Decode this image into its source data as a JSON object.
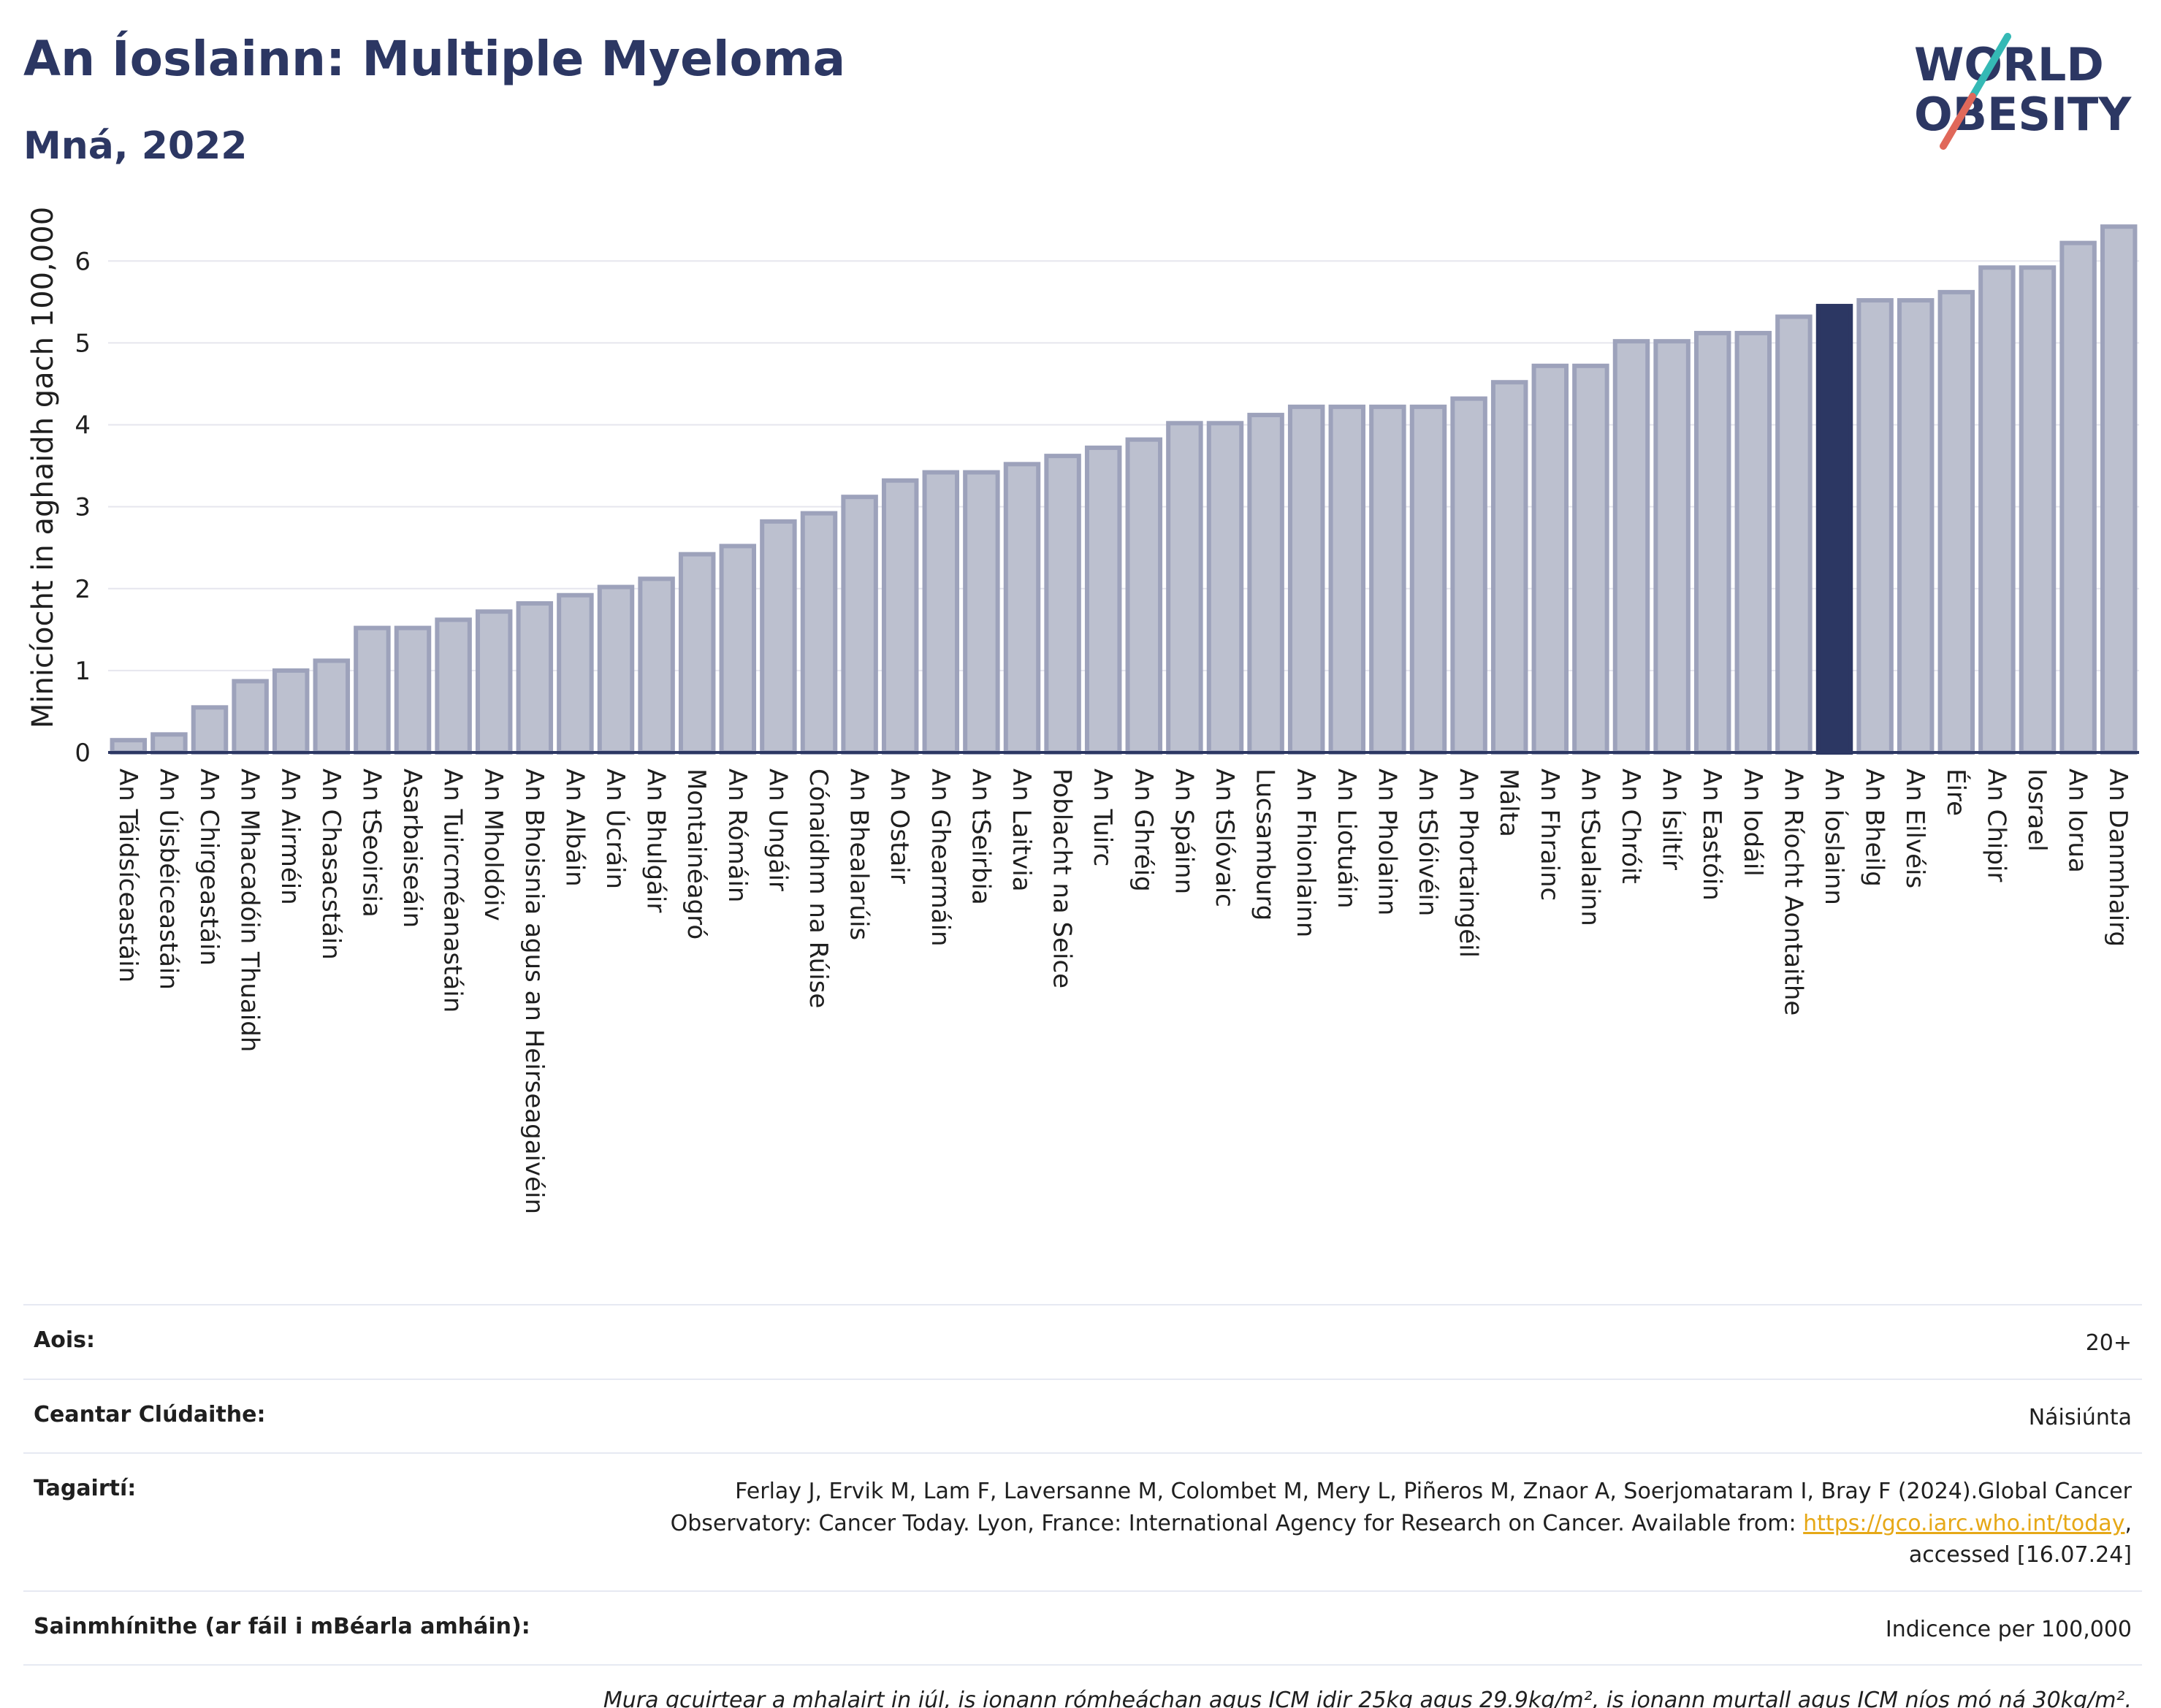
{
  "header": {
    "title": "An Íoslainn: Multiple Myeloma",
    "subtitle": "Mná, 2022"
  },
  "logo": {
    "line1": "WORLD",
    "line2": "OBESITY",
    "accent_colors": [
      "#35b9b5",
      "#e0685a"
    ]
  },
  "colors": {
    "bar": "#bcc0cf",
    "bar_border": "#9da2bb",
    "highlight": "#2c3763",
    "axis": "#2c3763",
    "grid": "#e6e6ee"
  },
  "chart_data": {
    "type": "bar",
    "ylabel": "Minicíocht in aghaidh gach 100,000",
    "ylim": [
      0,
      6.6
    ],
    "yticks": [
      0,
      1,
      2,
      3,
      4,
      5,
      6
    ],
    "highlight": "An Íoslainn",
    "categories": [
      "An Táidsíceastáin",
      "An Úisbéiceastáin",
      "An Chirgeastáin",
      "An Mhacadóin Thuaidh",
      "An Airméin",
      "An Chasacstáin",
      "An tSeoirsia",
      "Asarbaiseáin",
      "An Tuircméanastáin",
      "An Mholdóiv",
      "An Bhoisnia agus an Heirseagaivéin",
      "An Albáin",
      "An Úcráin",
      "An Bhulgáir",
      "Montainéagró",
      "An Rómáin",
      "An Ungáir",
      "Cónaidhm na Rúise",
      "An Bhealarúis",
      "An Ostair",
      "An Ghearmáin",
      "An tSeirbia",
      "An Laitvia",
      "Poblacht na Seice",
      "An Tuirc",
      "An Ghréig",
      "An Spáinn",
      "An tSlóvaic",
      "Lucsamburg",
      "An Fhionlainn",
      "An Liotuáin",
      "An Pholainn",
      "An tSlóivéin",
      "An Phortaingéil",
      "Málta",
      "An Fhrainc",
      "An tSualainn",
      "An Chróit",
      "An Ísiltír",
      "An Eastóin",
      "An Iodáil",
      "An Ríocht Aontaithe",
      "An Íoslainn",
      "An Bheilg",
      "An Eilvéis",
      "Éire",
      "An Chipir",
      "Iosrael",
      "An Iorua",
      "An Danmhairg"
    ],
    "values": [
      0.15,
      0.22,
      0.55,
      0.87,
      1.0,
      1.12,
      1.52,
      1.52,
      1.62,
      1.72,
      1.82,
      1.92,
      2.02,
      2.12,
      2.42,
      2.52,
      2.82,
      2.92,
      3.12,
      3.32,
      3.42,
      3.42,
      3.52,
      3.62,
      3.72,
      3.82,
      4.02,
      4.02,
      4.12,
      4.22,
      4.22,
      4.22,
      4.22,
      4.32,
      4.52,
      4.72,
      4.72,
      5.02,
      5.02,
      5.12,
      5.12,
      5.32,
      5.45,
      5.52,
      5.52,
      5.62,
      5.92,
      5.92,
      6.22,
      6.42
    ]
  },
  "info": {
    "age_label": "Aois:",
    "age_value": "20+",
    "area_label": "Ceantar Clúdaithe:",
    "area_value": "Náisiúnta",
    "refs_label": "Tagairtí:",
    "refs_text1": "Ferlay J, Ervik M, Lam F, Laversanne M, Colombet M, Mery L, Piñeros M, Znaor A, Soerjomataram I, Bray F (2024).Global Cancer",
    "refs_text2": "Observatory: Cancer Today. Lyon, France: International Agency for Research on Cancer. Available from: ",
    "refs_link": "https://gco.iarc.who.int/today",
    "refs_text3": ",",
    "refs_text4": "accessed [16.07.24]",
    "def_label": "Sainmhínithe (ar fáil i mBéarla amháin):",
    "def_value": "Indicence per 100,000",
    "note": "Mura gcuirtear a mhalairt in iúl, is ionann rómheáchan agus ICM idir 25kg agus 29.9kg/m², is ionann murtall agus ICM níos mó ná 30kg/m²."
  }
}
